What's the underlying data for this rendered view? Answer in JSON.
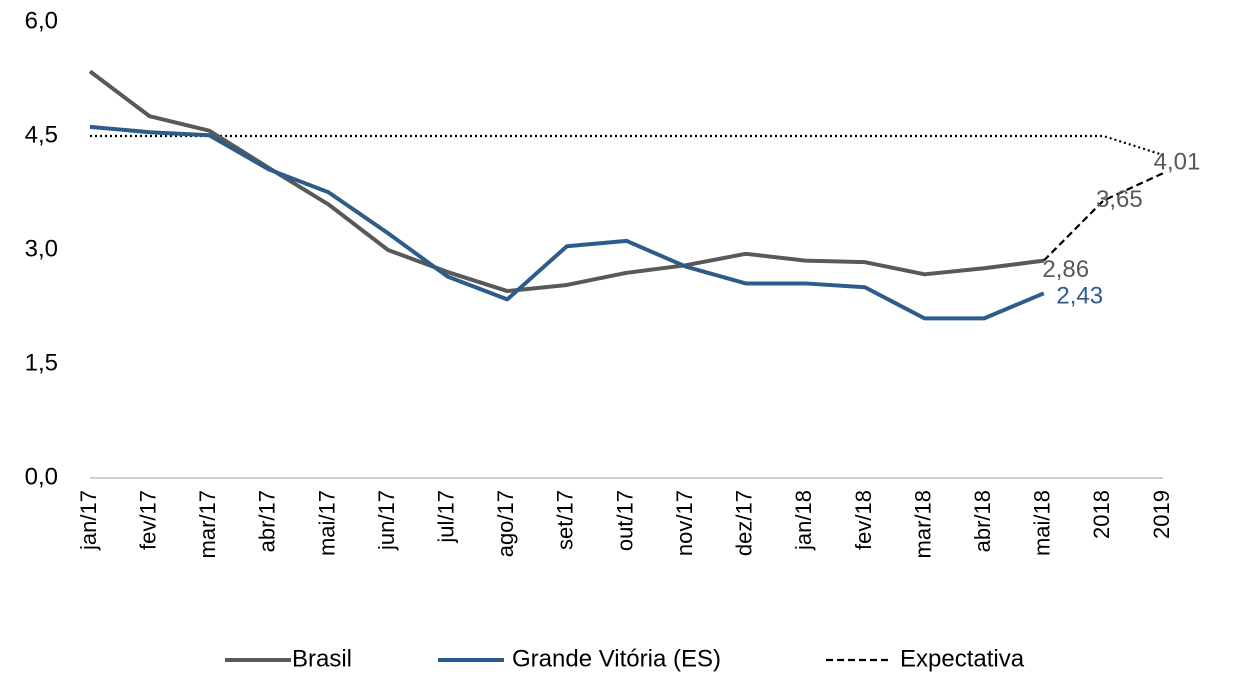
{
  "chart_data": {
    "type": "line",
    "categories": [
      "jan/17",
      "fev/17",
      "mar/17",
      "abr/17",
      "mai/17",
      "jun/17",
      "jul/17",
      "ago/17",
      "set/17",
      "out/17",
      "nov/17",
      "dez/17",
      "jan/18",
      "fev/18",
      "mar/18",
      "abr/18",
      "mai/18",
      "2018",
      "2019"
    ],
    "ylim": [
      0,
      6
    ],
    "yticks": [
      {
        "value": 0,
        "label": "0,0"
      },
      {
        "value": 1.5,
        "label": "1,5"
      },
      {
        "value": 3,
        "label": "3,0"
      },
      {
        "value": 4.5,
        "label": "4,5"
      },
      {
        "value": 6,
        "label": "6,0"
      }
    ],
    "grid": false,
    "legend": "bottom",
    "series": [
      {
        "name": "Brasil",
        "color": "#595959",
        "dash": "solid",
        "label_color": "#595959",
        "values": [
          5.35,
          4.76,
          4.57,
          4.08,
          3.6,
          3.0,
          2.71,
          2.46,
          2.54,
          2.7,
          2.8,
          2.95,
          2.86,
          2.84,
          2.68,
          2.76,
          2.86,
          null,
          null
        ],
        "value_labels": [
          null,
          null,
          null,
          null,
          null,
          null,
          null,
          null,
          null,
          null,
          null,
          null,
          null,
          null,
          null,
          null,
          "2,86",
          null,
          null
        ]
      },
      {
        "name": "Grande Vitória (ES)",
        "color": "#2e5c8a",
        "dash": "solid",
        "label_color": "#2e5c8a",
        "values": [
          4.62,
          4.55,
          4.51,
          4.06,
          3.76,
          3.22,
          2.65,
          2.35,
          3.05,
          3.12,
          2.78,
          2.56,
          2.56,
          2.51,
          2.1,
          2.1,
          2.43,
          null,
          null
        ],
        "value_labels": [
          null,
          null,
          null,
          null,
          null,
          null,
          null,
          null,
          null,
          null,
          null,
          null,
          null,
          null,
          null,
          null,
          "2,43",
          null,
          null
        ]
      },
      {
        "name": "Expectativa",
        "color": "#000000",
        "dash": "dashed",
        "label_color": "#595959",
        "values": [
          null,
          null,
          null,
          null,
          null,
          null,
          null,
          null,
          null,
          null,
          null,
          null,
          null,
          null,
          null,
          null,
          2.86,
          3.65,
          4.01
        ],
        "value_labels": [
          null,
          null,
          null,
          null,
          null,
          null,
          null,
          null,
          null,
          null,
          null,
          null,
          null,
          null,
          null,
          null,
          null,
          "3,65",
          "4,01"
        ]
      },
      {
        "color": "#000000",
        "dash": "dotted",
        "values": [
          4.5,
          4.5,
          4.5,
          4.5,
          4.5,
          4.5,
          4.5,
          4.5,
          4.5,
          4.5,
          4.5,
          4.5,
          4.5,
          4.5,
          4.5,
          4.5,
          4.5,
          4.5,
          4.25
        ]
      }
    ]
  }
}
